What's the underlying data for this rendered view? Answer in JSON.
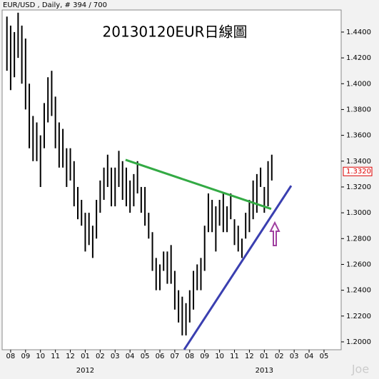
{
  "chart_data": {
    "type": "hilo",
    "title": "20130120EUR日線圖",
    "header": "EUR/USD , Daily, # 394 / 700",
    "watermark": "Joe",
    "color": "#000000",
    "x": [
      -0.25,
      0,
      0.25,
      0.5,
      0.75,
      1,
      1.25,
      1.5,
      1.75,
      2,
      2.25,
      2.5,
      2.75,
      3,
      3.25,
      3.5,
      3.75,
      4,
      4.25,
      4.5,
      4.75,
      5,
      5.25,
      5.5,
      5.75,
      6,
      6.25,
      6.5,
      6.75,
      7,
      7.25,
      7.5,
      7.75,
      8,
      8.25,
      8.5,
      8.75,
      9,
      9.25,
      9.5,
      9.75,
      10,
      10.25,
      10.5,
      10.75,
      11,
      11.25,
      11.5,
      11.75,
      12,
      12.25,
      12.5,
      12.75,
      13,
      13.25,
      13.5,
      13.75,
      14,
      14.25,
      14.5,
      14.75,
      15,
      15.25,
      15.5,
      15.75,
      16,
      16.25,
      16.5,
      16.75,
      17,
      17.25,
      17.5
    ],
    "low": [
      1.41,
      1.395,
      1.405,
      1.42,
      1.4,
      1.38,
      1.35,
      1.34,
      1.34,
      1.32,
      1.35,
      1.37,
      1.375,
      1.35,
      1.335,
      1.335,
      1.32,
      1.325,
      1.305,
      1.295,
      1.29,
      1.27,
      1.275,
      1.265,
      1.28,
      1.3,
      1.31,
      1.32,
      1.305,
      1.305,
      1.32,
      1.31,
      1.305,
      1.3,
      1.305,
      1.315,
      1.3,
      1.29,
      1.28,
      1.255,
      1.24,
      1.24,
      1.255,
      1.245,
      1.245,
      1.225,
      1.215,
      1.205,
      1.205,
      1.215,
      1.225,
      1.24,
      1.24,
      1.255,
      1.285,
      1.285,
      1.27,
      1.29,
      1.285,
      1.285,
      1.295,
      1.275,
      1.27,
      1.265,
      1.28,
      1.285,
      1.295,
      1.3,
      1.32,
      1.3,
      1.305,
      1.325
    ],
    "high": [
      1.452,
      1.445,
      1.44,
      1.455,
      1.445,
      1.435,
      1.4,
      1.375,
      1.37,
      1.36,
      1.385,
      1.405,
      1.41,
      1.39,
      1.37,
      1.365,
      1.35,
      1.35,
      1.34,
      1.32,
      1.31,
      1.3,
      1.3,
      1.29,
      1.31,
      1.325,
      1.335,
      1.345,
      1.335,
      1.335,
      1.348,
      1.34,
      1.335,
      1.325,
      1.33,
      1.34,
      1.32,
      1.32,
      1.3,
      1.285,
      1.265,
      1.26,
      1.27,
      1.27,
      1.275,
      1.255,
      1.24,
      1.235,
      1.23,
      1.24,
      1.255,
      1.26,
      1.265,
      1.29,
      1.315,
      1.31,
      1.305,
      1.31,
      1.315,
      1.305,
      1.315,
      1.295,
      1.29,
      1.28,
      1.3,
      1.31,
      1.325,
      1.33,
      1.335,
      1.32,
      1.34,
      1.345
    ],
    "lines": [
      {
        "color": "#33aa44",
        "x": [
          7.7,
          17.46
        ],
        "values": [
          1.341,
          1.303
        ]
      },
      {
        "color": "#3a3fb0",
        "x": [
          11.63,
          18.8
        ],
        "values": [
          1.194,
          1.321
        ]
      }
    ],
    "last_price": {
      "value": 1.332,
      "label": "1.3320"
    },
    "xlim": [
      -0.57,
      22.15
    ],
    "xticks": [
      {
        "value": 0,
        "label": "08"
      },
      {
        "value": 1,
        "label": "09"
      },
      {
        "value": 2,
        "label": "10"
      },
      {
        "value": 3,
        "label": "11"
      },
      {
        "value": 4,
        "label": "12"
      },
      {
        "value": 5,
        "label": "01"
      },
      {
        "value": 6,
        "label": "02"
      },
      {
        "value": 7,
        "label": "03"
      },
      {
        "value": 8,
        "label": "04"
      },
      {
        "value": 9,
        "label": "05"
      },
      {
        "value": 10,
        "label": "06"
      },
      {
        "value": 11,
        "label": "07"
      },
      {
        "value": 12,
        "label": "08"
      },
      {
        "value": 13,
        "label": "09"
      },
      {
        "value": 14,
        "label": "10"
      },
      {
        "value": 15,
        "label": "11"
      },
      {
        "value": 16,
        "label": "12"
      },
      {
        "value": 17,
        "label": "01"
      },
      {
        "value": 18,
        "label": "02"
      },
      {
        "value": 19,
        "label": "03"
      },
      {
        "value": 20,
        "label": "04"
      },
      {
        "value": 21,
        "label": "05"
      }
    ],
    "years": [
      {
        "value": 5,
        "label": "2012"
      },
      {
        "value": 17,
        "label": "2013"
      }
    ],
    "ylim": [
      1.1939,
      1.4571
    ],
    "yticks": [
      {
        "value": 1.2,
        "label": "1.2000"
      },
      {
        "value": 1.22,
        "label": "1.2200"
      },
      {
        "value": 1.24,
        "label": "1.2400"
      },
      {
        "value": 1.26,
        "label": "1.2600"
      },
      {
        "value": 1.28,
        "label": "1.2800"
      },
      {
        "value": 1.3,
        "label": "1.3000"
      },
      {
        "value": 1.32,
        "label": "1.3200"
      },
      {
        "value": 1.34,
        "label": "1.3400"
      },
      {
        "value": 1.36,
        "label": "1.3600"
      },
      {
        "value": 1.38,
        "label": "1.3800"
      },
      {
        "value": 1.4,
        "label": "1.4000"
      },
      {
        "value": 1.42,
        "label": "1.4200"
      },
      {
        "value": 1.44,
        "label": "1.4400"
      }
    ]
  }
}
